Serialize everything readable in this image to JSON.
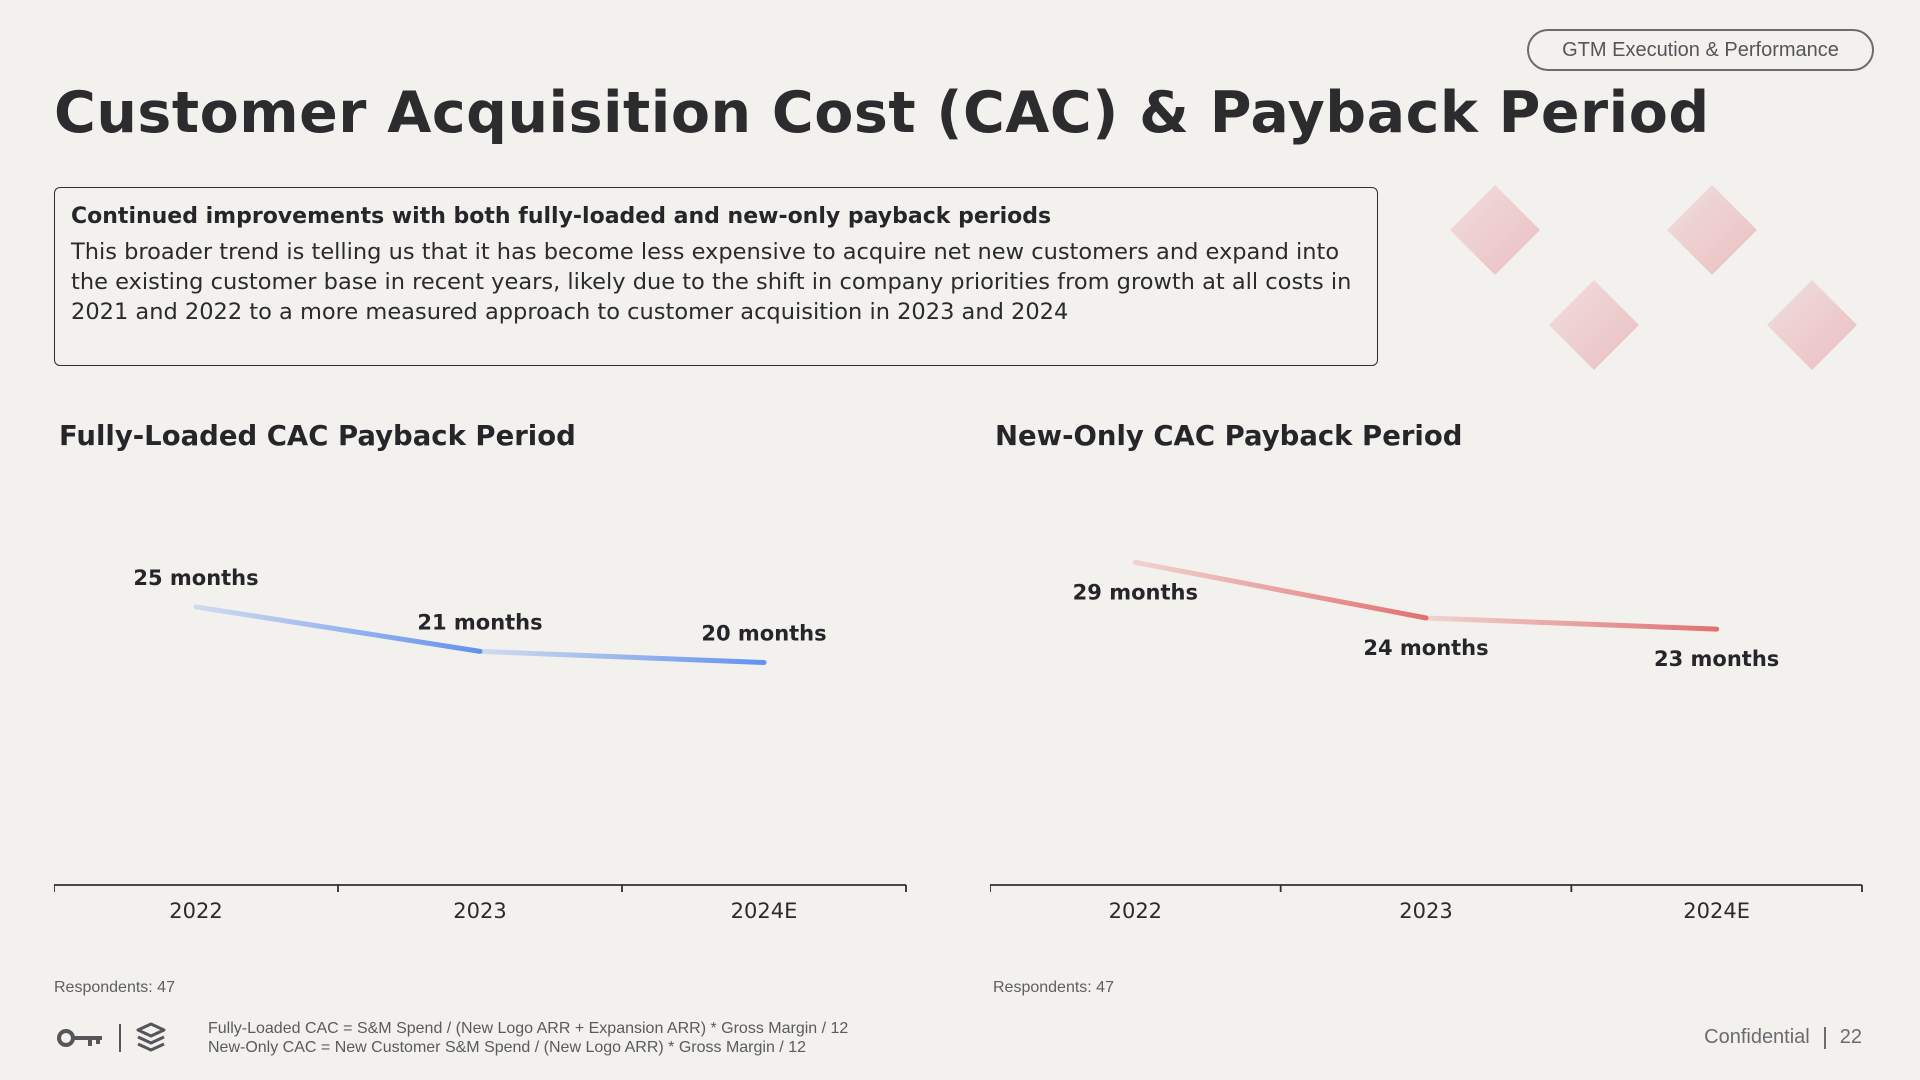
{
  "header": {
    "section_pill": "GTM Execution & Performance",
    "title": "Customer Acquisition Cost (CAC) & Payback Period"
  },
  "callout": {
    "heading": "Continued improvements with both fully-loaded and new-only payback periods",
    "body": "This broader trend is telling us that it has become less expensive to acquire net new customers and expand into the existing customer base in recent years, likely due to the shift in company priorities from growth at all costs in 2021 and 2022 to a more measured approach to customer acquisition in 2023 and 2024"
  },
  "chart_data": [
    {
      "type": "line",
      "title": "Fully-Loaded CAC Payback Period",
      "categories": [
        "2022",
        "2023",
        "2024E"
      ],
      "values": [
        25,
        21,
        20
      ],
      "data_labels": [
        "25 months",
        "21 months",
        "20 months"
      ],
      "label_positions": [
        "above",
        "above",
        "above"
      ],
      "ylim": [
        0,
        40
      ],
      "grid": false,
      "color": "#5b8def"
    },
    {
      "type": "line",
      "title": "New-Only CAC Payback Period",
      "categories": [
        "2022",
        "2023",
        "2024E"
      ],
      "values": [
        29,
        24,
        23
      ],
      "data_labels": [
        "29 months",
        "24 months",
        "23 months"
      ],
      "label_positions": [
        "below",
        "below",
        "below"
      ],
      "ylim": [
        0,
        40
      ],
      "grid": false,
      "color": "#e06a6a"
    }
  ],
  "respondents": [
    "Respondents: 47",
    "Respondents: 47"
  ],
  "footer": {
    "formula_1": "Fully-Loaded CAC = S&M Spend / (New Logo ARR + Expansion ARR) * Gross Margin / 12",
    "formula_2": "New-Only CAC = New Customer S&M Spend / (New Logo ARR) * Gross Margin / 12",
    "confidential": "Confidential",
    "page_number": "22",
    "icons": [
      "key-icon",
      "stack-logo-icon"
    ]
  },
  "colors": {
    "background": "#f3f1ed",
    "text": "#2b2b2e",
    "accent_blue": "#5b8def",
    "accent_red": "#e06a6a",
    "decor_pink": "#eab9bd"
  }
}
